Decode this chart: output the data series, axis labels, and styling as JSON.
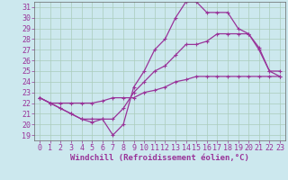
{
  "xlabel": "Windchill (Refroidissement éolien,°C)",
  "bg_color": "#cce8ee",
  "grid_color": "#aaccbb",
  "line_color": "#993399",
  "spine_color": "#666666",
  "xlim": [
    -0.5,
    23.5
  ],
  "ylim": [
    18.5,
    31.5
  ],
  "xticks": [
    0,
    1,
    2,
    3,
    4,
    5,
    6,
    7,
    8,
    9,
    10,
    11,
    12,
    13,
    14,
    15,
    16,
    17,
    18,
    19,
    20,
    21,
    22,
    23
  ],
  "yticks": [
    19,
    20,
    21,
    22,
    23,
    24,
    25,
    26,
    27,
    28,
    29,
    30,
    31
  ],
  "line1_x": [
    0,
    1,
    2,
    3,
    4,
    5,
    6,
    7,
    8,
    9,
    10,
    11,
    12,
    13,
    14,
    15,
    16,
    17,
    18,
    19,
    20,
    21,
    22,
    23
  ],
  "line1_y": [
    22.5,
    22.0,
    21.5,
    21.0,
    20.5,
    20.5,
    20.5,
    19.0,
    20.0,
    23.5,
    25.0,
    27.0,
    28.0,
    30.0,
    31.5,
    31.5,
    30.5,
    30.5,
    30.5,
    29.0,
    28.5,
    27.0,
    25.0,
    24.5
  ],
  "line2_x": [
    0,
    1,
    2,
    3,
    4,
    5,
    6,
    7,
    8,
    9,
    10,
    11,
    12,
    13,
    14,
    15,
    16,
    17,
    18,
    19,
    20,
    21,
    22,
    23
  ],
  "line2_y": [
    22.5,
    22.0,
    21.5,
    21.0,
    20.5,
    20.2,
    20.5,
    20.5,
    21.5,
    23.0,
    24.0,
    25.0,
    25.5,
    26.5,
    27.5,
    27.5,
    27.8,
    28.5,
    28.5,
    28.5,
    28.5,
    27.2,
    25.0,
    25.0
  ],
  "line3_x": [
    0,
    1,
    2,
    3,
    4,
    5,
    6,
    7,
    8,
    9,
    10,
    11,
    12,
    13,
    14,
    15,
    16,
    17,
    18,
    19,
    20,
    21,
    22,
    23
  ],
  "line3_y": [
    22.5,
    22.0,
    22.0,
    22.0,
    22.0,
    22.0,
    22.2,
    22.5,
    22.5,
    22.5,
    23.0,
    23.2,
    23.5,
    24.0,
    24.2,
    24.5,
    24.5,
    24.5,
    24.5,
    24.5,
    24.5,
    24.5,
    24.5,
    24.5
  ],
  "markersize": 3,
  "linewidth": 0.9,
  "tick_fontsize": 6.0,
  "xlabel_fontsize": 6.5
}
